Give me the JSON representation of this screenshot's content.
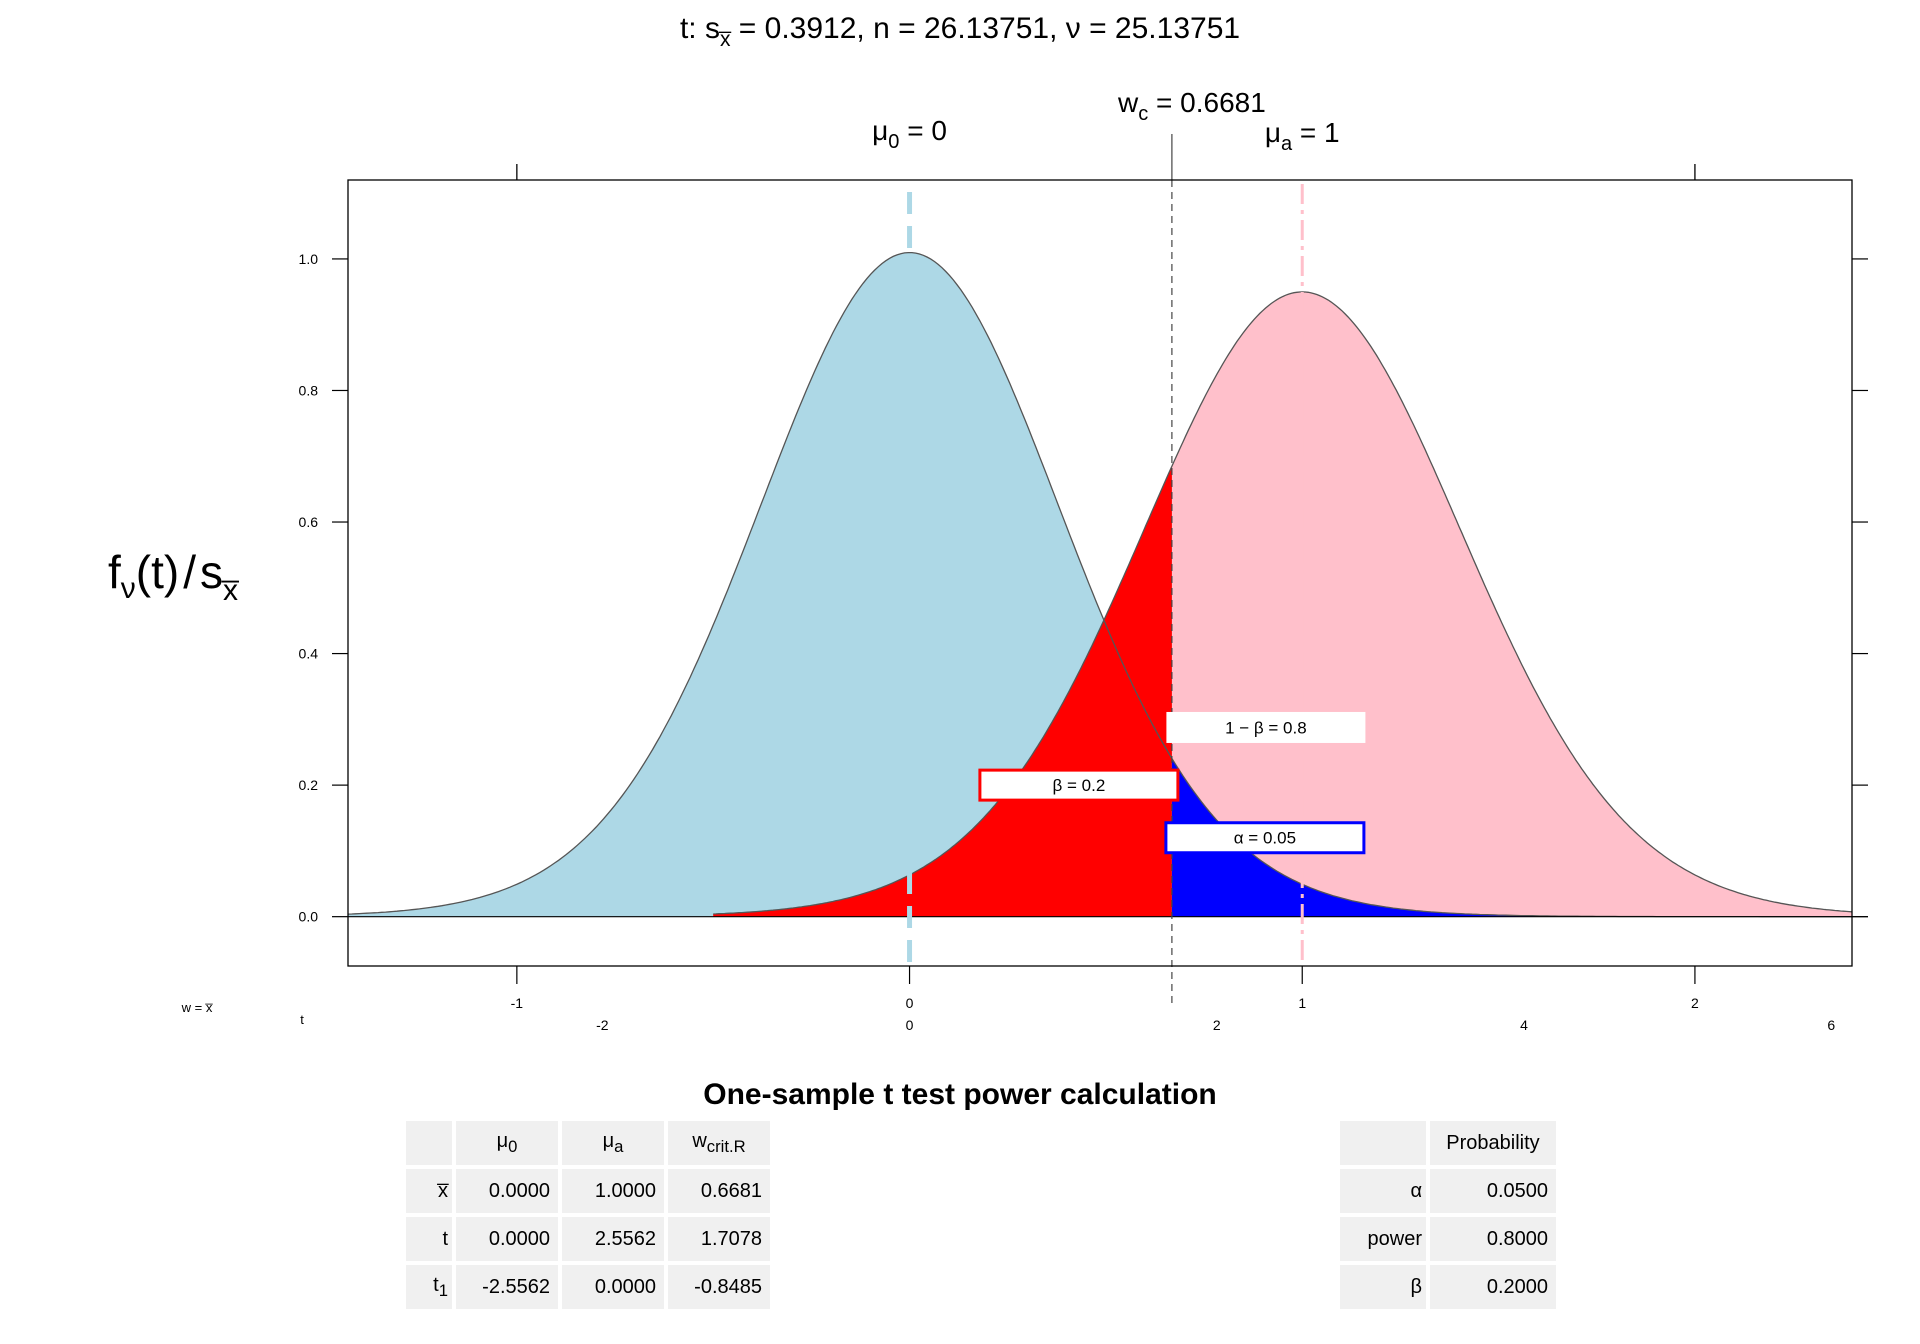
{
  "chart_data": {
    "type": "area",
    "title": "t: s̅x = 0.3912,  n = 26.13751,  ν = 25.13751",
    "title_parts": {
      "prefix": "t: s",
      "sub": "x̅",
      "rest": " = 0.3912,  n = 26.13751,  ν = 25.13751"
    },
    "ylabel_parts": {
      "f": "f",
      "nu": "ν",
      "mid": "(t)",
      "slash": "/",
      "s": "s",
      "xbar": "x̅"
    },
    "params": {
      "s_xbar": 0.3912,
      "n": 26.13751,
      "df": 25.13751,
      "mu0": 0,
      "mua": 1,
      "wc": 0.6681,
      "alpha": 0.05,
      "beta": 0.2,
      "power": 0.8
    },
    "ylim": [
      -0.075,
      1.12
    ],
    "xlim_w": [
      -1.43,
      2.4
    ],
    "y_ticks": [
      "0.0",
      "0.2",
      "0.4",
      "0.6",
      "0.8",
      "1.0"
    ],
    "y_tick_values": [
      0,
      0.2,
      0.4,
      0.6,
      0.8,
      1.0
    ],
    "w_axis_name": "w = x̅",
    "t_axis_name": "t",
    "w_ticks": [
      "-1",
      "0",
      "1",
      "2"
    ],
    "w_tick_values": [
      -1,
      0,
      1,
      2
    ],
    "t_ticks": [
      "-2",
      "0",
      "2",
      "4",
      "6"
    ],
    "t_tick_values": [
      -2,
      0,
      2,
      4,
      6
    ],
    "top_labels": {
      "mu0": {
        "sym": "μ",
        "sub": "0",
        "rest": " = 0"
      },
      "mua": {
        "sym": "μ",
        "sub": "a",
        "rest": " = 1"
      },
      "wc": {
        "sym": "w",
        "sub": "c",
        "rest": " = 0.6681"
      }
    },
    "annotations": [
      {
        "name": "power-label",
        "text": "1 − β = 0.8"
      },
      {
        "name": "beta-label",
        "text": "β = 0.2"
      },
      {
        "name": "alpha-label",
        "text": "α = 0.05"
      }
    ],
    "colors": {
      "null_fill": "#add8e6",
      "alt_fill": "#ffc0cb",
      "beta_fill": "#ff0000",
      "alpha_fill": "#0000ff",
      "null_line": "#add8e6",
      "alt_line": "#ffc0cb",
      "curve_line": "#555555",
      "beta_box": "#ff0000",
      "alpha_box": "#0000ff"
    },
    "grid": false,
    "legend": "none"
  },
  "table": {
    "title": "One-sample t test power calculation",
    "left": {
      "header": [
        {
          "sym": "μ",
          "sub": "0"
        },
        {
          "sym": "μ",
          "sub": "a"
        },
        {
          "sym": "w",
          "sub": "crit.R"
        }
      ],
      "rows": [
        {
          "head": "x̅",
          "head_sub": "",
          "cells": [
            "0.0000",
            "1.0000",
            "0.6681"
          ]
        },
        {
          "head": "t",
          "head_sub": "",
          "cells": [
            "0.0000",
            "2.5562",
            "1.7078"
          ]
        },
        {
          "head": "t",
          "head_sub": "1",
          "cells": [
            "-2.5562",
            "0.0000",
            "-0.8485"
          ]
        }
      ]
    },
    "right": {
      "header": "Probability",
      "rows": [
        {
          "head": "α",
          "value": "0.0500"
        },
        {
          "head": "power",
          "value": "0.8000"
        },
        {
          "head": "β",
          "value": "0.2000"
        }
      ]
    }
  }
}
